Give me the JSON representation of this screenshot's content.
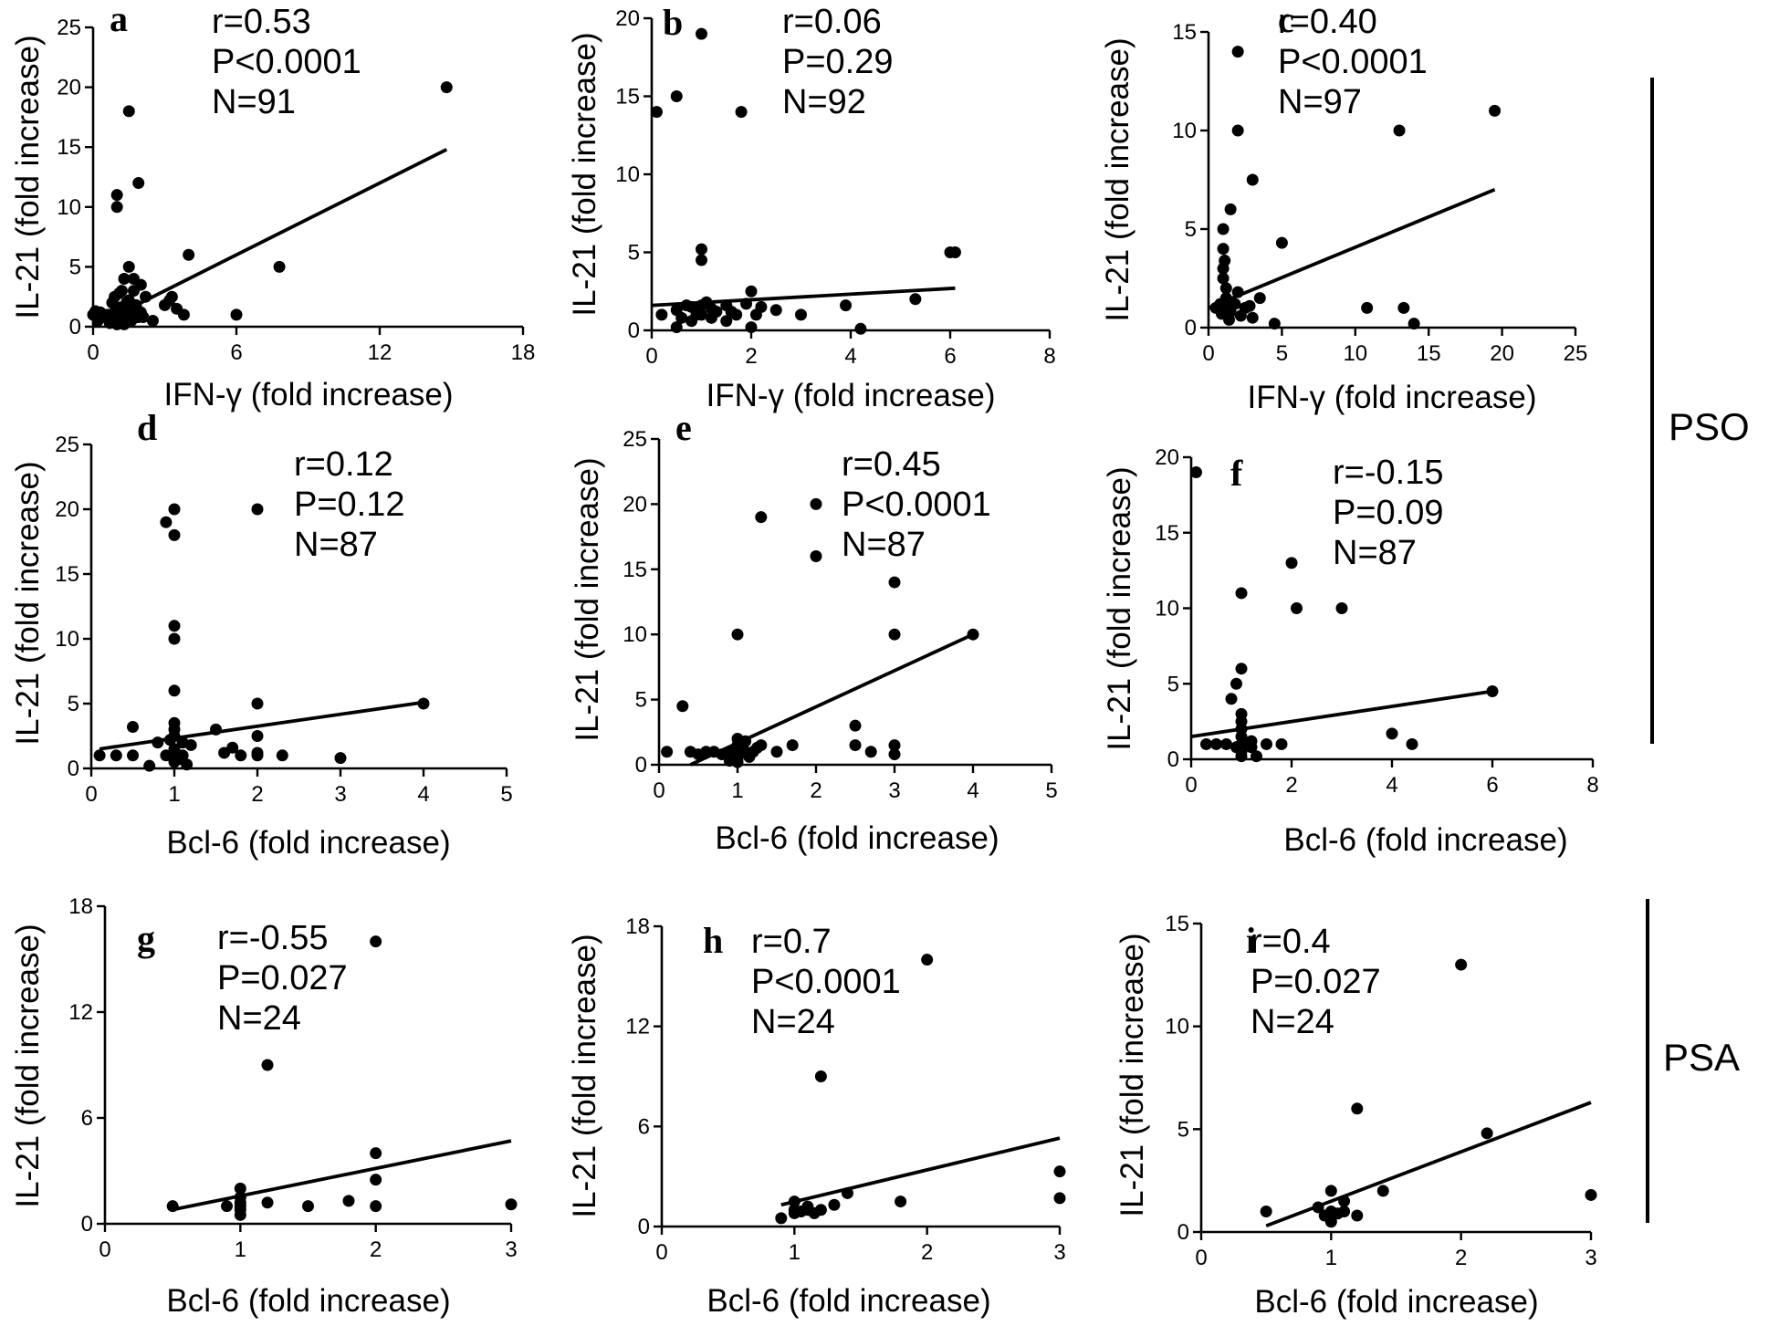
{
  "figure": {
    "groups": [
      {
        "id": "pso",
        "label": "PSO"
      },
      {
        "id": "psa",
        "label": "PSA"
      }
    ]
  },
  "chart_data": [
    {
      "id": "a",
      "type": "scatter",
      "letter": "a",
      "xlabel": "IFN-γ (fold increase)",
      "ylabel": "IL-21 (fold increase)",
      "xlim": [
        0,
        18
      ],
      "ylim": [
        0,
        25
      ],
      "xticks": [
        0,
        6,
        12,
        18
      ],
      "xtick_labels": [
        "0",
        "6",
        "12",
        "18"
      ],
      "yticks": [
        0,
        5,
        10,
        15,
        20,
        25
      ],
      "ytick_labels": [
        "0",
        "5",
        "10",
        "15",
        "20",
        "25"
      ],
      "stats": {
        "r": "r=0.53",
        "p": "P<0.0001",
        "n": "N=91"
      },
      "fit": {
        "x": [
          0.5,
          14.8
        ],
        "y": [
          0.5,
          14.8
        ]
      },
      "points": {
        "x": [
          0,
          0.1,
          0.2,
          0.3,
          0.5,
          0.6,
          0.7,
          0.8,
          0.9,
          1.0,
          1.0,
          1.0,
          1.1,
          1.1,
          1.2,
          1.2,
          1.3,
          1.3,
          1.4,
          1.5,
          1.5,
          1.5,
          1.6,
          1.7,
          1.7,
          1.8,
          1.9,
          2.0,
          2.0,
          2.1,
          2.2,
          2.5,
          3.0,
          3.2,
          3.3,
          3.5,
          3.8,
          4.0,
          6.0,
          7.8,
          14.8,
          1.0,
          1.2,
          1.3,
          1.6,
          1.9,
          0.9,
          1.1
        ],
        "y": [
          1.0,
          1.3,
          0.5,
          1.2,
          0.8,
          1.0,
          0.3,
          2.0,
          1.2,
          0.8,
          10.0,
          11.0,
          2.8,
          0.5,
          1.5,
          3.0,
          1.0,
          4.0,
          2.0,
          18.0,
          5.0,
          2.2,
          1.0,
          4.0,
          3.0,
          1.8,
          12.0,
          3.5,
          1.2,
          0.8,
          2.5,
          0.5,
          1.8,
          2.2,
          2.5,
          1.5,
          1.0,
          6.0,
          1.0,
          5.0,
          20.0,
          0.2,
          0.8,
          0.2,
          0.5,
          0.8,
          2.5,
          1.6
        ]
      }
    },
    {
      "id": "b",
      "type": "scatter",
      "letter": "b",
      "xlabel": "IFN-γ (fold increase)",
      "ylabel": "IL-21 (fold increase)",
      "xlim": [
        0,
        8
      ],
      "ylim": [
        0,
        20
      ],
      "xticks": [
        0,
        2,
        4,
        6,
        8
      ],
      "xtick_labels": [
        "0",
        "2",
        "4",
        "6",
        "8"
      ],
      "yticks": [
        0,
        5,
        10,
        15,
        20
      ],
      "ytick_labels": [
        "0",
        "5",
        "10",
        "15",
        "20"
      ],
      "stats": {
        "r": "r=0.06",
        "p": "P=0.29",
        "n": "N=92"
      },
      "fit": {
        "x": [
          0,
          6.1
        ],
        "y": [
          1.6,
          2.7
        ]
      },
      "points": {
        "x": [
          0.1,
          0.5,
          1.0,
          1.0,
          1.0,
          0.2,
          0.5,
          0.8,
          0.9,
          1.1,
          1.2,
          1.3,
          1.5,
          1.7,
          1.8,
          2.0,
          2.0,
          2.2,
          2.5,
          3.0,
          3.9,
          4.2,
          5.3,
          6.0,
          6.1,
          0.5,
          1.0,
          1.5,
          1.9,
          0.7,
          1.0,
          1.2,
          0.6,
          0.8,
          1.6,
          2.1
        ],
        "y": [
          14.0,
          15.0,
          19.0,
          5.2,
          4.5,
          1.0,
          0.2,
          1.5,
          1.0,
          1.8,
          0.8,
          1.2,
          1.6,
          1.0,
          14.0,
          2.5,
          0.2,
          1.5,
          1.3,
          1.0,
          1.6,
          0.1,
          2.0,
          5.0,
          5.0,
          1.3,
          1.6,
          0.6,
          1.7,
          1.6,
          1.0,
          1.4,
          0.8,
          0.6,
          1.2,
          1.0
        ]
      }
    },
    {
      "id": "c",
      "type": "scatter",
      "letter": "c",
      "xlabel": "IFN-γ (fold increase)",
      "ylabel": "IL-21 (fold increase)",
      "xlim": [
        0,
        25
      ],
      "ylim": [
        0,
        15
      ],
      "xticks": [
        0,
        5,
        10,
        15,
        20,
        25
      ],
      "xtick_labels": [
        "0",
        "5",
        "10",
        "15",
        "20",
        "25"
      ],
      "stats": {
        "r": "r=0.40",
        "p": "P<0.0001",
        "n": "N=97"
      },
      "yticks": [
        0,
        5,
        10,
        15
      ],
      "ytick_labels": [
        "0",
        "5",
        "10",
        "15"
      ],
      "fit": {
        "x": [
          0,
          19.5
        ],
        "y": [
          1.0,
          7.0
        ]
      },
      "points": {
        "x": [
          0.5,
          0.8,
          1.0,
          1.0,
          1.0,
          1.0,
          1.2,
          1.2,
          1.5,
          1.5,
          2.0,
          2.0,
          2.0,
          2.5,
          3.0,
          3.0,
          3.5,
          4.5,
          5.0,
          10.8,
          13.0,
          13.3,
          14.0,
          19.5,
          1.1,
          1.3,
          1.8,
          2.2,
          0.9,
          1.4,
          2.8
        ],
        "y": [
          1.0,
          1.2,
          5.0,
          4.0,
          3.0,
          2.5,
          2.0,
          1.5,
          6.0,
          0.8,
          14.0,
          10.0,
          1.8,
          1.0,
          7.5,
          0.5,
          1.5,
          0.2,
          4.3,
          1.0,
          10.0,
          1.0,
          0.2,
          11.0,
          3.4,
          1.0,
          1.2,
          0.6,
          0.7,
          0.4,
          1.1
        ]
      }
    },
    {
      "id": "d",
      "type": "scatter",
      "letter": "d",
      "xlabel": "Bcl-6 (fold increase)",
      "ylabel": "IL-21  (fold increase)",
      "xlim": [
        0,
        5
      ],
      "ylim": [
        0,
        25
      ],
      "xticks": [
        0,
        1,
        2,
        3,
        4,
        5
      ],
      "xtick_labels": [
        "0",
        "1",
        "2",
        "3",
        "4",
        "5"
      ],
      "yticks": [
        0,
        5,
        10,
        15,
        20,
        25
      ],
      "ytick_labels": [
        "0",
        "5",
        "10",
        "15",
        "20",
        "25"
      ],
      "stats": {
        "r": "r=0.12",
        "p": "P=0.12",
        "n": "N=87"
      },
      "fit": {
        "x": [
          0.1,
          4.0
        ],
        "y": [
          1.5,
          5.1
        ]
      },
      "points": {
        "x": [
          0.1,
          0.3,
          0.5,
          0.5,
          0.7,
          0.8,
          0.9,
          0.9,
          1.0,
          1.0,
          1.0,
          1.0,
          1.0,
          1.0,
          1.0,
          1.0,
          1.0,
          1.0,
          1.1,
          1.1,
          1.2,
          1.5,
          1.6,
          1.8,
          2.0,
          2.0,
          2.0,
          2.0,
          2.0,
          2.3,
          3.0,
          4.0,
          1.0,
          0.95,
          1.05,
          1.15,
          1.7
        ],
        "y": [
          1.0,
          1.0,
          1.0,
          3.2,
          0.2,
          2.0,
          1.0,
          19.0,
          20.0,
          18.0,
          11.0,
          10.0,
          6.0,
          3.5,
          2.5,
          1.5,
          1.0,
          0.5,
          2.0,
          1.0,
          1.8,
          3.0,
          1.2,
          1.0,
          20.0,
          5.0,
          2.5,
          1.2,
          1.0,
          1.0,
          0.8,
          5.0,
          3.0,
          2.2,
          0.7,
          0.3,
          1.6
        ]
      }
    },
    {
      "id": "e",
      "type": "scatter",
      "letter": "e",
      "xlabel": "Bcl-6 (fold increase)",
      "ylabel": "IL-21  (fold increase)",
      "xlim": [
        0,
        5
      ],
      "ylim": [
        0,
        25
      ],
      "xticks": [
        0,
        1,
        2,
        3,
        4,
        5
      ],
      "xtick_labels": [
        "0",
        "1",
        "2",
        "3",
        "4",
        "5"
      ],
      "yticks": [
        0,
        5,
        10,
        15,
        20,
        25
      ],
      "ytick_labels": [
        "0",
        "5",
        "10",
        "15",
        "20",
        "25"
      ],
      "stats": {
        "r": "r=0.45",
        "p": "P<0.0001",
        "n": "N=87"
      },
      "fit": {
        "x": [
          0.4,
          4.0
        ],
        "y": [
          0,
          10.0
        ]
      },
      "points": {
        "x": [
          0.1,
          0.3,
          0.4,
          0.5,
          0.6,
          0.7,
          0.8,
          0.9,
          1.0,
          1.0,
          1.0,
          1.0,
          1.0,
          1.0,
          1.1,
          1.1,
          1.2,
          1.3,
          1.3,
          1.5,
          1.7,
          2.0,
          2.0,
          2.5,
          2.5,
          2.7,
          3.0,
          3.0,
          3.0,
          3.0,
          4.0,
          0.9,
          1.05,
          1.15,
          1.25
        ],
        "y": [
          1.0,
          4.5,
          1.0,
          0.8,
          1.0,
          1.0,
          0.8,
          1.0,
          10.0,
          2.0,
          1.5,
          1.0,
          0.5,
          0.2,
          1.8,
          1.0,
          1.0,
          19.0,
          1.5,
          1.0,
          1.5,
          20.0,
          16.0,
          3.0,
          1.5,
          1.0,
          14.0,
          10.0,
          1.5,
          0.8,
          10.0,
          0.3,
          1.2,
          0.6,
          1.3
        ]
      }
    },
    {
      "id": "f",
      "type": "scatter",
      "letter": "f",
      "xlabel": "Bcl-6 (fold increase)",
      "ylabel": "IL-21  (fold increase)",
      "xlim": [
        0,
        8
      ],
      "ylim": [
        0,
        20
      ],
      "xticks": [
        0,
        2,
        4,
        6,
        8
      ],
      "xtick_labels": [
        "0",
        "2",
        "4",
        "6",
        "8"
      ],
      "yticks": [
        0,
        5,
        10,
        15,
        20
      ],
      "ytick_labels": [
        "0",
        "5",
        "10",
        "15",
        "20"
      ],
      "stats": {
        "r": "r=-0.15",
        "p": "P=0.09",
        "n": "N=87"
      },
      "fit": {
        "x": [
          0,
          6.0
        ],
        "y": [
          1.5,
          4.5
        ]
      },
      "points": {
        "x": [
          0.1,
          0.3,
          0.5,
          0.7,
          0.8,
          0.9,
          1.0,
          1.0,
          1.0,
          1.0,
          1.0,
          1.0,
          1.0,
          1.0,
          1.1,
          1.2,
          1.3,
          1.5,
          1.8,
          2.0,
          2.1,
          3.0,
          4.0,
          4.4,
          6.0,
          0.9,
          1.0,
          1.2
        ],
        "y": [
          19.0,
          1.0,
          1.0,
          1.0,
          4.0,
          5.0,
          11.0,
          6.0,
          3.0,
          2.0,
          1.0,
          0.5,
          0.2,
          2.5,
          1.0,
          0.8,
          0.2,
          1.0,
          1.0,
          13.0,
          10.0,
          10.0,
          1.7,
          1.0,
          4.5,
          0.8,
          1.5,
          1.2
        ]
      }
    },
    {
      "id": "g",
      "type": "scatter",
      "letter": "g",
      "xlabel": "Bcl-6 (fold increase)",
      "ylabel": "IL-21 (fold increase)",
      "xlim": [
        0,
        3
      ],
      "ylim": [
        0,
        18
      ],
      "xticks": [
        0,
        1,
        2,
        3
      ],
      "xtick_labels": [
        "0",
        "1",
        "2",
        "3"
      ],
      "yticks": [
        0,
        6,
        12,
        18
      ],
      "ytick_labels": [
        "0",
        "6",
        "12",
        "18"
      ],
      "stats": {
        "r": "r=-0.55",
        "p": "P=0.027",
        "n": "N=24"
      },
      "fit": {
        "x": [
          0.5,
          3.0
        ],
        "y": [
          0.8,
          4.7
        ]
      },
      "points": {
        "x": [
          0.5,
          0.9,
          1.0,
          1.0,
          1.0,
          1.0,
          1.0,
          1.2,
          1.2,
          1.5,
          1.8,
          2.0,
          2.0,
          2.0,
          2.0,
          3.0,
          1.0
        ],
        "y": [
          1.0,
          1.0,
          2.0,
          1.5,
          1.0,
          0.8,
          0.5,
          9.0,
          1.2,
          1.0,
          1.3,
          16.0,
          4.0,
          2.5,
          1.0,
          1.1,
          1.2
        ]
      }
    },
    {
      "id": "h",
      "type": "scatter",
      "letter": "h",
      "xlabel": "Bcl-6 (fold increase)",
      "ylabel": "IL-21 (fold increase)",
      "xlim": [
        0,
        3
      ],
      "ylim": [
        0,
        18
      ],
      "xticks": [
        0,
        1,
        2,
        3
      ],
      "xtick_labels": [
        "0",
        "1",
        "2",
        "3"
      ],
      "yticks": [
        0,
        6,
        12,
        18
      ],
      "ytick_labels": [
        "0",
        "6",
        "12",
        "18"
      ],
      "stats": {
        "r": "r=0.7",
        "p": "P<0.0001",
        "n": "N=24"
      },
      "fit": {
        "x": [
          0.9,
          3.0
        ],
        "y": [
          1.3,
          5.3
        ]
      },
      "points": {
        "x": [
          0.9,
          1.0,
          1.0,
          1.0,
          1.1,
          1.1,
          1.2,
          1.2,
          1.3,
          1.4,
          1.8,
          2.0,
          3.0,
          3.0,
          1.05,
          1.15
        ],
        "y": [
          0.5,
          1.5,
          1.0,
          0.8,
          1.2,
          1.0,
          9.0,
          1.0,
          1.3,
          2.0,
          1.5,
          16.0,
          3.3,
          1.7,
          0.9,
          0.8
        ]
      }
    },
    {
      "id": "i",
      "type": "scatter",
      "letter": "i",
      "xlabel": "Bcl-6 (fold increase)",
      "ylabel": "IL-21 (fold increase)",
      "xlim": [
        0,
        3
      ],
      "ylim": [
        0,
        15
      ],
      "xticks": [
        0,
        1,
        2,
        3
      ],
      "xtick_labels": [
        "0",
        "1",
        "2",
        "3"
      ],
      "yticks": [
        0,
        5,
        10,
        15
      ],
      "ytick_labels": [
        "0",
        "5",
        "10",
        "15"
      ],
      "stats": {
        "r": "r=0.4",
        "p": "P=0.027",
        "n": "N=24"
      },
      "fit": {
        "x": [
          0.5,
          3.0
        ],
        "y": [
          0.3,
          6.3
        ]
      },
      "points": {
        "x": [
          0.5,
          0.9,
          1.0,
          1.0,
          1.0,
          1.0,
          1.1,
          1.1,
          1.2,
          1.2,
          1.4,
          2.0,
          2.2,
          3.0,
          1.05,
          0.95
        ],
        "y": [
          1.0,
          1.2,
          2.0,
          1.0,
          0.8,
          0.5,
          1.5,
          1.0,
          6.0,
          0.8,
          2.0,
          13.0,
          4.8,
          1.8,
          0.9,
          0.8
        ]
      }
    }
  ]
}
